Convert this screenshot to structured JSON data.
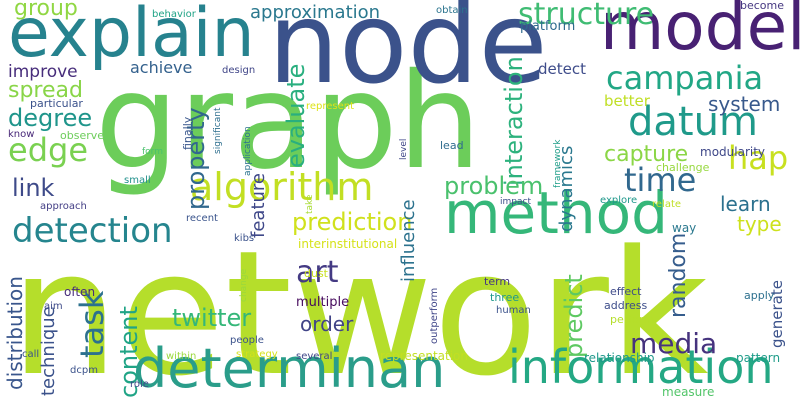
{
  "words": [
    {
      "text": "network",
      "color": "#b5de2b",
      "orientation": "horizontal"
    },
    {
      "text": "graph",
      "color": "#6ccd5a",
      "orientation": "horizontal"
    },
    {
      "text": "node",
      "color": "#3b528b",
      "orientation": "horizontal"
    },
    {
      "text": "explain",
      "color": "#26828e",
      "orientation": "horizontal"
    },
    {
      "text": "model",
      "color": "#482173",
      "orientation": "horizontal"
    },
    {
      "text": "method",
      "color": "#35b779",
      "orientation": "horizontal"
    },
    {
      "text": "determinan",
      "color": "#2a9d8a",
      "orientation": "horizontal"
    },
    {
      "text": "information",
      "color": "#24a884",
      "orientation": "horizontal"
    },
    {
      "text": "algorithm",
      "color": "#c2df23",
      "orientation": "horizontal"
    },
    {
      "text": "datum",
      "color": "#1f9a8a",
      "orientation": "horizontal"
    },
    {
      "text": "campania",
      "color": "#22a785",
      "orientation": "horizontal"
    },
    {
      "text": "structure",
      "color": "#3fbc73",
      "orientation": "horizontal"
    },
    {
      "text": "detection",
      "color": "#25858e",
      "orientation": "horizontal"
    },
    {
      "text": "edge",
      "color": "#7ad151",
      "orientation": "horizontal"
    },
    {
      "text": "time",
      "color": "#31688e",
      "orientation": "horizontal"
    },
    {
      "text": "hap",
      "color": "#c8e020",
      "orientation": "horizontal"
    },
    {
      "text": "art",
      "color": "#443a83",
      "orientation": "horizontal"
    },
    {
      "text": "prediction",
      "color": "#d0e11c",
      "orientation": "horizontal"
    },
    {
      "text": "task",
      "color": "#2c718e",
      "orientation": "vertical"
    },
    {
      "text": "link",
      "color": "#3e4a89",
      "orientation": "horizontal"
    },
    {
      "text": "media",
      "color": "#46337e",
      "orientation": "horizontal"
    },
    {
      "text": "property",
      "color": "#31688e",
      "orientation": "vertical"
    },
    {
      "text": "evaluate",
      "color": "#29af7f",
      "orientation": "vertical"
    },
    {
      "text": "interaction",
      "color": "#2db27d",
      "orientation": "vertical"
    },
    {
      "text": "problem",
      "color": "#4ac16d",
      "orientation": "horizontal"
    },
    {
      "text": "twitter",
      "color": "#35b779",
      "orientation": "horizontal"
    },
    {
      "text": "content",
      "color": "#20a486",
      "orientation": "vertical"
    },
    {
      "text": "degree",
      "color": "#1f958b",
      "orientation": "horizontal"
    },
    {
      "text": "spread",
      "color": "#89d548",
      "orientation": "horizontal"
    },
    {
      "text": "system",
      "color": "#38598c",
      "orientation": "horizontal"
    },
    {
      "text": "capture",
      "color": "#8bd646",
      "orientation": "horizontal"
    },
    {
      "text": "learn",
      "color": "#2c718e",
      "orientation": "horizontal"
    },
    {
      "text": "type",
      "color": "#cde11d",
      "orientation": "horizontal"
    },
    {
      "text": "predict",
      "color": "#5ec962",
      "orientation": "vertical"
    },
    {
      "text": "random",
      "color": "#365d8d",
      "orientation": "vertical"
    },
    {
      "text": "group",
      "color": "#90d743",
      "orientation": "horizontal"
    },
    {
      "text": "approximation",
      "color": "#2a788e",
      "orientation": "horizontal"
    },
    {
      "text": "distribution",
      "color": "#39568c",
      "orientation": "vertical"
    },
    {
      "text": "order",
      "color": "#414487",
      "orientation": "horizontal"
    },
    {
      "text": "influence",
      "color": "#2c728e",
      "orientation": "vertical"
    },
    {
      "text": "feature",
      "color": "#3f4889",
      "orientation": "vertical"
    },
    {
      "text": "dynamics",
      "color": "#2a788e",
      "orientation": "vertical"
    },
    {
      "text": "technique",
      "color": "#3b528b",
      "orientation": "vertical"
    },
    {
      "text": "improve",
      "color": "#472d7b",
      "orientation": "horizontal"
    },
    {
      "text": "achieve",
      "color": "#34618d",
      "orientation": "horizontal"
    },
    {
      "text": "detect",
      "color": "#3e4c8a",
      "orientation": "horizontal"
    },
    {
      "text": "better",
      "color": "#c0df25",
      "orientation": "horizontal"
    },
    {
      "text": "generate",
      "color": "#3b528b",
      "orientation": "vertical"
    },
    {
      "text": "platform",
      "color": "#306a8e",
      "orientation": "horizontal"
    },
    {
      "text": "modularity",
      "color": "#3f4889",
      "orientation": "horizontal"
    },
    {
      "text": "multiple",
      "color": "#460a5d",
      "orientation": "horizontal"
    },
    {
      "text": "often",
      "color": "#472c7a",
      "orientation": "horizontal"
    },
    {
      "text": "interinstitutional",
      "color": "#d5e21a",
      "orientation": "horizontal"
    },
    {
      "text": "representation",
      "color": "#c2df23",
      "orientation": "horizontal"
    },
    {
      "text": "relationship",
      "color": "#1f988b",
      "orientation": "horizontal"
    },
    {
      "text": "pattern",
      "color": "#1e9c89",
      "orientation": "horizontal"
    },
    {
      "text": "measure",
      "color": "#52c569",
      "orientation": "horizontal"
    },
    {
      "text": "obtain",
      "color": "#2b748e",
      "orientation": "horizontal"
    },
    {
      "text": "become",
      "color": "#453781",
      "orientation": "horizontal"
    },
    {
      "text": "behavior",
      "color": "#20a386",
      "orientation": "horizontal"
    },
    {
      "text": "design",
      "color": "#404688",
      "orientation": "horizontal"
    },
    {
      "text": "particular",
      "color": "#3b528b",
      "orientation": "horizontal"
    },
    {
      "text": "know",
      "color": "#482878",
      "orientation": "horizontal"
    },
    {
      "text": "observe",
      "color": "#6ccd5a",
      "orientation": "horizontal"
    },
    {
      "text": "represent",
      "color": "#dde318",
      "orientation": "horizontal"
    },
    {
      "text": "significant",
      "color": "#2e6f8e",
      "orientation": "vertical"
    },
    {
      "text": "application",
      "color": "#2c738e",
      "orientation": "vertical"
    },
    {
      "text": "finally",
      "color": "#39568c",
      "orientation": "vertical"
    },
    {
      "text": "form",
      "color": "#4ac16d",
      "orientation": "horizontal"
    },
    {
      "text": "small",
      "color": "#21918c",
      "orientation": "horizontal"
    },
    {
      "text": "approach",
      "color": "#433e85",
      "orientation": "horizontal"
    },
    {
      "text": "recent",
      "color": "#3a548c",
      "orientation": "horizontal"
    },
    {
      "text": "take",
      "color": "#a8db34",
      "orientation": "vertical"
    },
    {
      "text": "level",
      "color": "#3f4788",
      "orientation": "vertical"
    },
    {
      "text": "lead",
      "color": "#2f6c8e",
      "orientation": "horizontal"
    },
    {
      "text": "framework",
      "color": "#1f9e89",
      "orientation": "vertical"
    },
    {
      "text": "challenge",
      "color": "#97d83f",
      "orientation": "horizontal"
    },
    {
      "text": "explore",
      "color": "#1f988b",
      "orientation": "horizontal"
    },
    {
      "text": "relate",
      "color": "#c0df25",
      "orientation": "horizontal"
    },
    {
      "text": "impact",
      "color": "#3c4f8a",
      "orientation": "horizontal"
    },
    {
      "text": "way",
      "color": "#2a788e",
      "orientation": "horizontal"
    },
    {
      "text": "kibs",
      "color": "#3b528b",
      "orientation": "horizontal"
    },
    {
      "text": "change",
      "color": "#9bd93c",
      "orientation": "vertical"
    },
    {
      "text": "dust",
      "color": "#c8e020",
      "orientation": "horizontal"
    },
    {
      "text": "term",
      "color": "#453781",
      "orientation": "horizontal"
    },
    {
      "text": "three",
      "color": "#1f988b",
      "orientation": "horizontal"
    },
    {
      "text": "human",
      "color": "#3b528b",
      "orientation": "horizontal"
    },
    {
      "text": "effect",
      "color": "#3e4a89",
      "orientation": "horizontal"
    },
    {
      "text": "address",
      "color": "#3d4d8a",
      "orientation": "horizontal"
    },
    {
      "text": "perform",
      "color": "#b5de2b",
      "orientation": "horizontal"
    },
    {
      "text": "apply",
      "color": "#2d708e",
      "orientation": "horizontal"
    },
    {
      "text": "outperform",
      "color": "#404688",
      "orientation": "vertical"
    },
    {
      "text": "aim",
      "color": "#3e4a89",
      "orientation": "horizontal"
    },
    {
      "text": "people",
      "color": "#3b528b",
      "orientation": "horizontal"
    },
    {
      "text": "strategy",
      "color": "#d5e21a",
      "orientation": "horizontal"
    },
    {
      "text": "several",
      "color": "#3f4788",
      "orientation": "horizontal"
    },
    {
      "text": "call",
      "color": "#3b528b",
      "orientation": "horizontal"
    },
    {
      "text": "within",
      "color": "#9bd93c",
      "orientation": "horizontal"
    },
    {
      "text": "dcpm",
      "color": "#3b528b",
      "orientation": "horizontal"
    },
    {
      "text": "role",
      "color": "#3f4788",
      "orientation": "horizontal"
    }
  ]
}
